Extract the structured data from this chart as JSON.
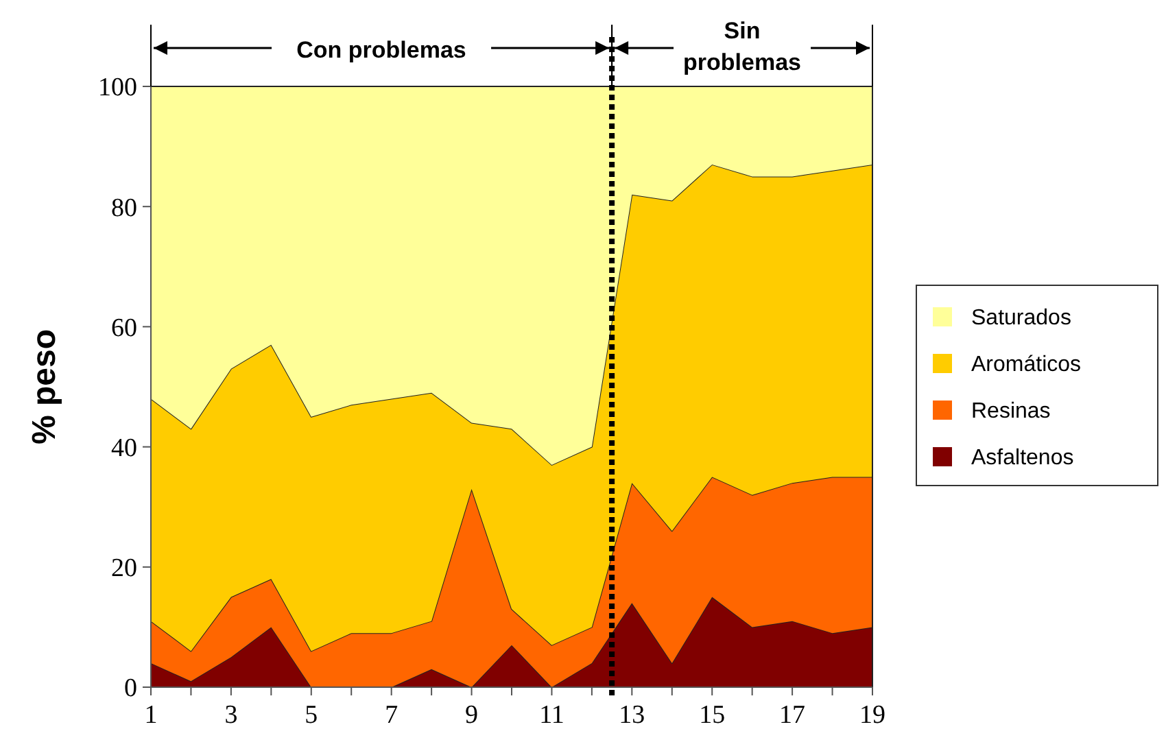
{
  "chart_data": {
    "type": "area",
    "stacked": true,
    "ylabel": "% peso",
    "x": [
      1,
      2,
      3,
      4,
      5,
      6,
      7,
      8,
      9,
      10,
      11,
      12,
      13,
      14,
      15,
      16,
      17,
      18,
      19
    ],
    "series": [
      {
        "name": "Asfaltenos",
        "color": "#800000",
        "values": [
          4,
          1,
          5,
          10,
          0,
          0,
          0,
          3,
          0,
          7,
          0,
          4,
          14,
          4,
          15,
          10,
          11,
          9,
          10
        ]
      },
      {
        "name": "Resinas",
        "color": "#ff6600",
        "values": [
          7,
          5,
          10,
          8,
          6,
          9,
          9,
          8,
          33,
          6,
          7,
          6,
          20,
          22,
          20,
          22,
          23,
          26,
          25
        ]
      },
      {
        "name": "Aromáticos",
        "color": "#ffcc00",
        "values": [
          37,
          37,
          38,
          39,
          39,
          38,
          39,
          38,
          11,
          30,
          30,
          30,
          48,
          55,
          52,
          53,
          51,
          51,
          52
        ]
      },
      {
        "name": "Saturados",
        "color": "#ffff99",
        "values": [
          52,
          57,
          47,
          43,
          55,
          53,
          52,
          51,
          56,
          57,
          63,
          60,
          18,
          19,
          13,
          15,
          15,
          14,
          13
        ]
      }
    ],
    "xlim": [
      1,
      19
    ],
    "xticks": [
      1,
      {
        "value": 2,
        "label": null
      },
      3,
      {
        "value": 4,
        "label": null
      },
      5,
      {
        "value": 6,
        "label": null
      },
      7,
      {
        "value": 8,
        "label": null
      },
      9,
      {
        "value": 10,
        "label": null
      },
      11,
      {
        "value": 12,
        "label": null
      },
      13,
      {
        "value": 14,
        "label": null
      },
      15,
      {
        "value": 16,
        "label": null
      },
      17,
      {
        "value": 18,
        "label": null
      },
      19
    ],
    "ylim": [
      0,
      100
    ],
    "yticks": [
      0,
      20,
      40,
      60,
      80,
      100
    ],
    "legend": "right",
    "ref_lines": [
      {
        "axis": "x",
        "value": 12.5,
        "color": "#000000",
        "line_style": "dotted"
      }
    ],
    "annotations": [
      "Con problemas",
      "Sin problemas"
    ]
  }
}
